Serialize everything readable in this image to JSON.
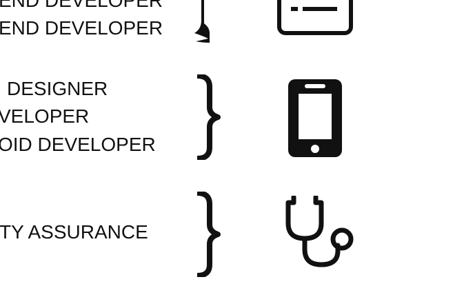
{
  "groups": [
    {
      "roles": [
        "END  DEVELOPER",
        "END DEVELOPER"
      ],
      "icon": "document-icon"
    },
    {
      "roles": [
        "DESIGNER",
        "VELOPER",
        "OID DEVELOPER"
      ],
      "icon": "smartphone-icon"
    },
    {
      "roles": [
        "TY ASSURANCE"
      ],
      "icon": "stethoscope-icon"
    }
  ],
  "colors": {
    "ink": "#111111",
    "background": "#ffffff"
  }
}
